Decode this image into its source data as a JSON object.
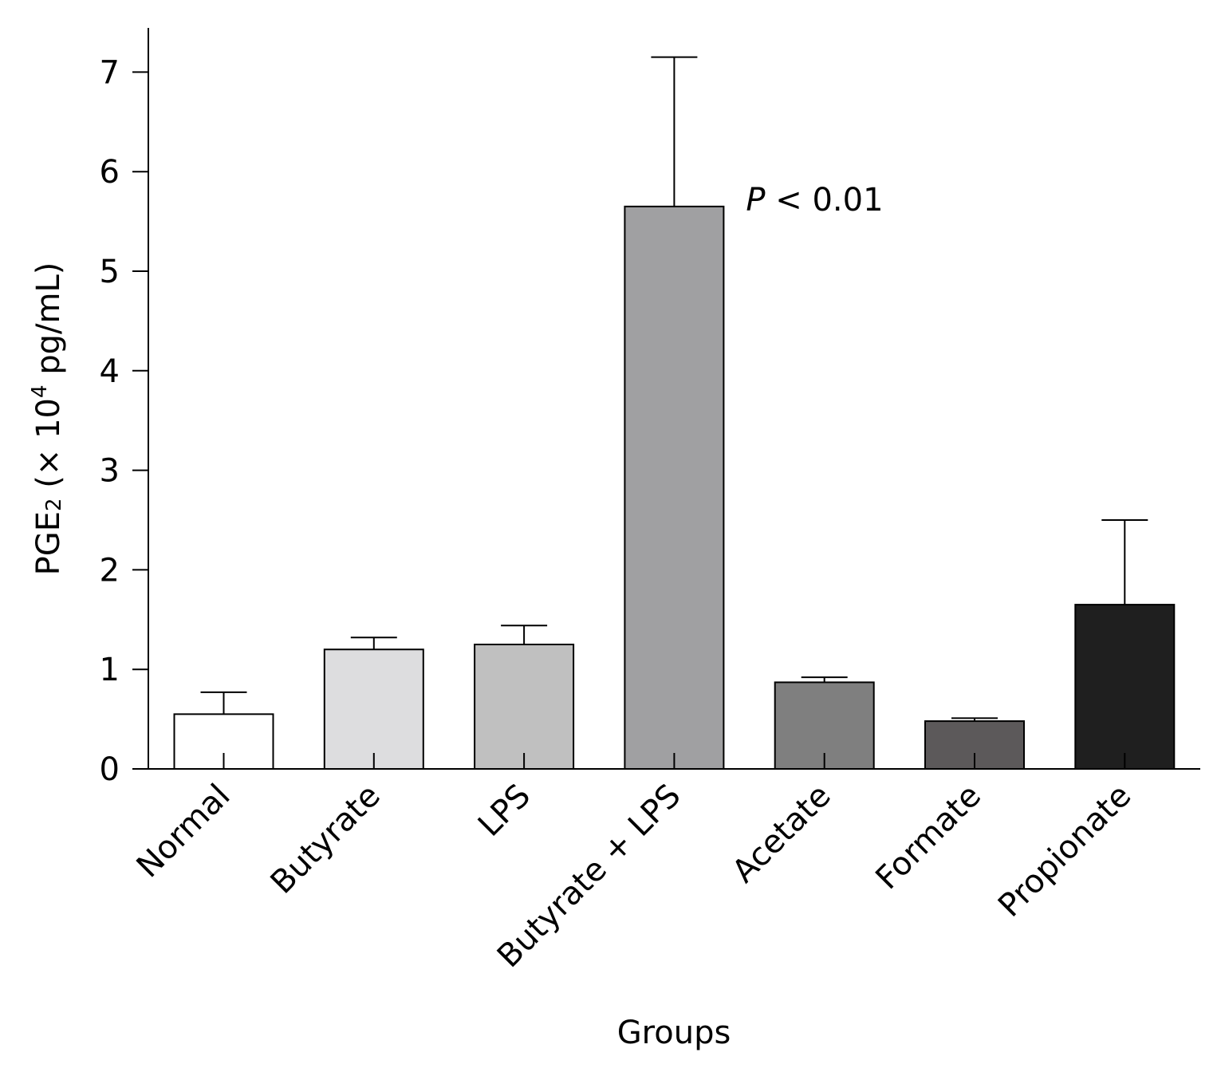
{
  "chart_data": {
    "type": "bar",
    "title": "",
    "xlabel": "Groups",
    "ylabel": {
      "prefix": "PGE",
      "prefix_sub": "2",
      "middle": " (× 10",
      "exponent": "4",
      "suffix": " pg/mL)"
    },
    "ylim": [
      0,
      7.45
    ],
    "yticks": [
      0,
      1,
      2,
      3,
      4,
      5,
      6,
      7
    ],
    "categories": [
      "Normal",
      "Butyrate",
      "LPS",
      "Butyrate + LPS",
      "Acetate",
      "Formate",
      "Propionate"
    ],
    "values": [
      0.55,
      1.2,
      1.25,
      5.65,
      0.87,
      0.48,
      1.65
    ],
    "errors": [
      0.22,
      0.12,
      0.19,
      1.5,
      0.05,
      0.03,
      0.85
    ],
    "bar_colors": [
      "#ffffff",
      "#dddddf",
      "#c0c0c0",
      "#a0a0a2",
      "#7f7f7f",
      "#5c595a",
      "#1f1f1f"
    ],
    "annotation": {
      "italic": "P",
      "rest": " < 0.01",
      "category": "Butyrate + LPS"
    },
    "grid": false,
    "legend": "none"
  }
}
